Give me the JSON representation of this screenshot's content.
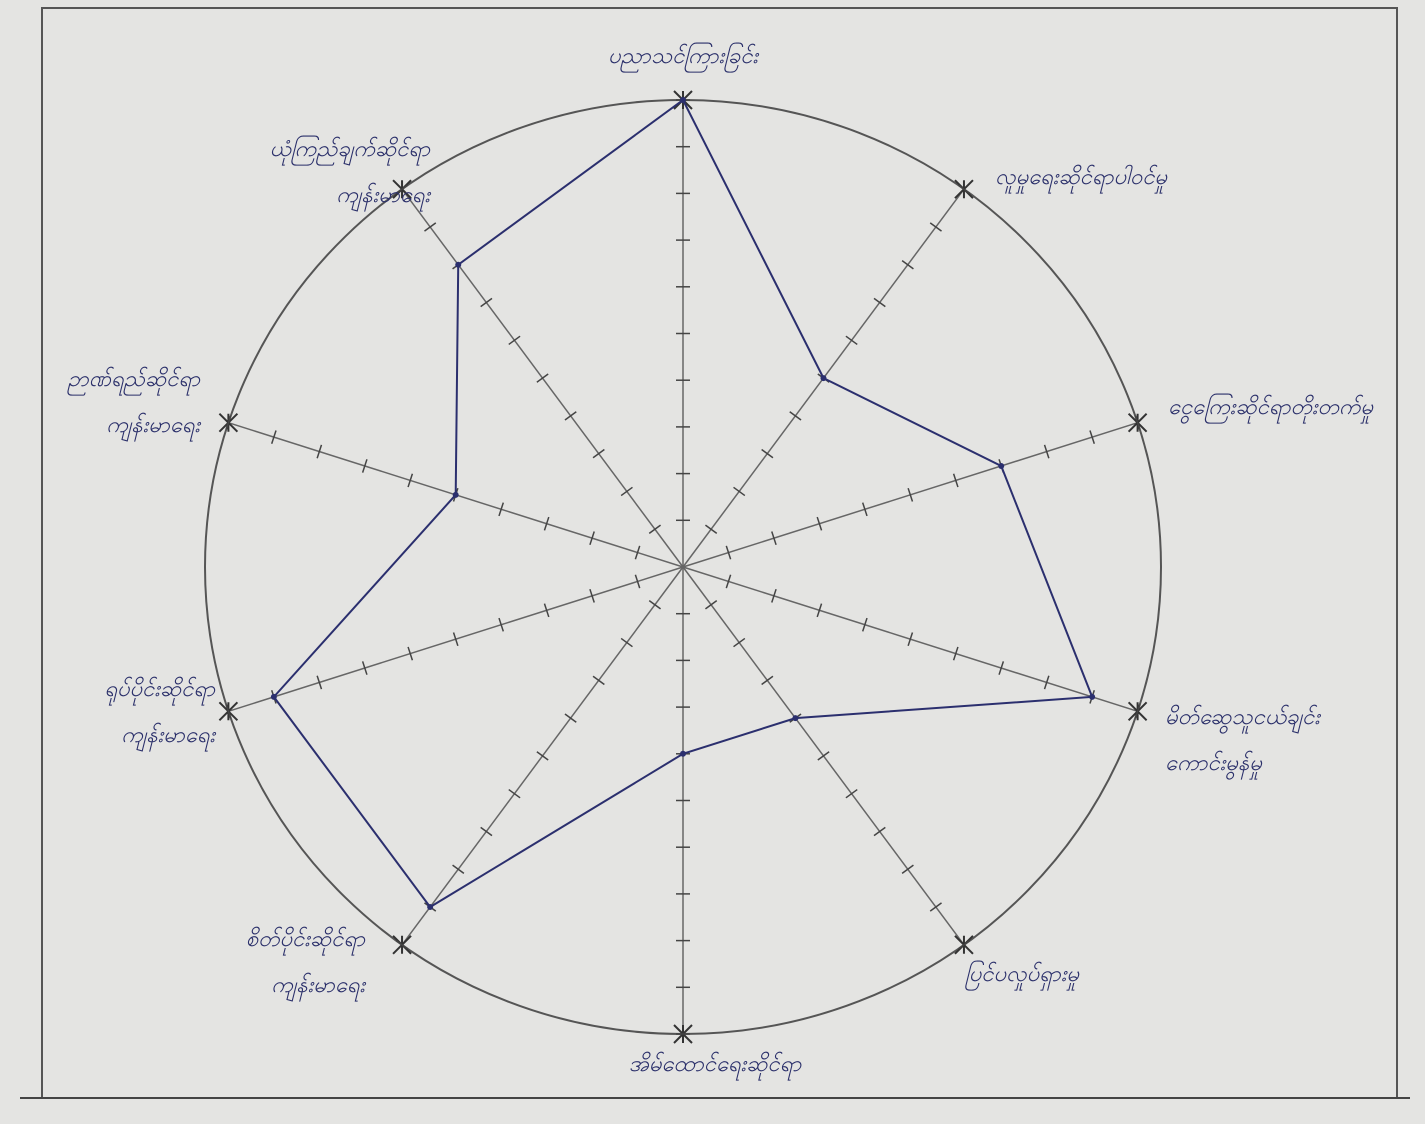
{
  "chart_data": {
    "type": "radar",
    "categories": [
      [
        "ပညာသင်ကြားခြင်း"
      ],
      [
        "လူမှုရေးဆိုင်ရာပါဝင်မှု"
      ],
      [
        "ငွေကြေးဆိုင်ရာတိုးတက်မှု"
      ],
      [
        "မိတ်ဆွေသူငယ်ချင်း",
        "ကောင်းမွန်မှု"
      ],
      [
        "ပြင်ပလှုပ်ရှားမှု"
      ],
      [
        "အိမ်ထောင်ရေးဆိုင်ရာ"
      ],
      [
        "စိတ်ပိုင်းဆိုင်ရာ",
        "ကျန်းမာရေး"
      ],
      [
        "ရုပ်ပိုင်းဆိုင်ရာ",
        "ကျန်းမာရေး"
      ],
      [
        "ဉာဏ်ရည်ဆိုင်ရာ",
        "ကျန်းမာရေး"
      ],
      [
        "ယုံကြည်ချက်ဆိုင်ရာ",
        "ကျန်းမာရေး"
      ]
    ],
    "values": [
      10,
      5,
      7,
      9,
      4,
      4,
      9,
      9,
      5,
      8
    ],
    "color": "#2b2f6e",
    "rlim": [
      0,
      10
    ],
    "rticks": [
      1,
      2,
      3,
      4,
      5,
      6,
      7,
      8,
      9,
      10
    ]
  }
}
